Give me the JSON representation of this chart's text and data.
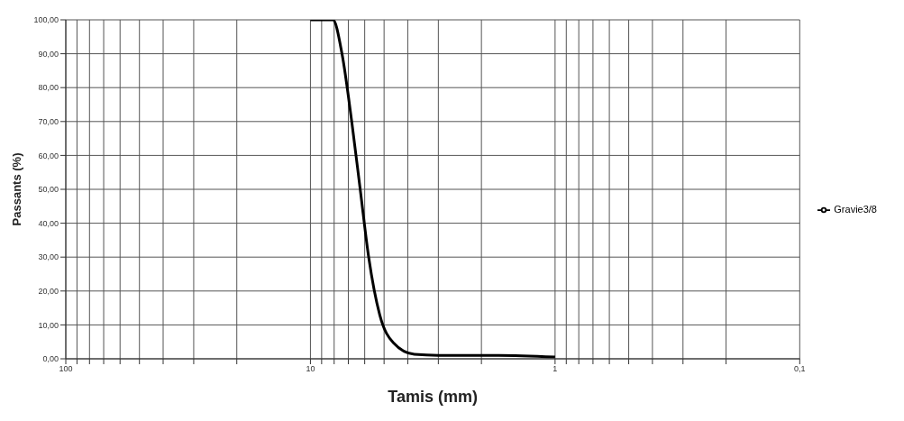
{
  "chart_data": {
    "type": "line",
    "xlabel": "Tamis (mm)",
    "ylabel": "Passants (%)",
    "log": "x",
    "x": [
      10,
      8.93,
      8.09,
      7.43,
      6.78,
      6.26,
      5.78,
      5.21,
      4.58,
      3.76,
      3.0,
      1.7,
      1
    ],
    "series": [
      {
        "name": "Gravie3/8",
        "color": "#000000",
        "values": [
          100,
          100,
          100,
          90,
          70,
          50,
          30,
          13,
          4.7,
          1.3,
          1.0,
          1.0,
          0.5
        ]
      }
    ],
    "xlim": [
      100,
      0.1
    ],
    "xticks": [
      100,
      {
        "value": 90,
        "label": null
      },
      {
        "value": 80,
        "label": null
      },
      {
        "value": 70,
        "label": null
      },
      {
        "value": 60,
        "label": null
      },
      {
        "value": 50,
        "label": null
      },
      {
        "value": 40,
        "label": null
      },
      {
        "value": 30,
        "label": null
      },
      {
        "value": 20,
        "label": null
      },
      10,
      {
        "value": 9,
        "label": null
      },
      {
        "value": 8,
        "label": null
      },
      {
        "value": 7,
        "label": null
      },
      {
        "value": 6,
        "label": null
      },
      {
        "value": 5,
        "label": null
      },
      {
        "value": 4,
        "label": null
      },
      {
        "value": 3,
        "label": null
      },
      {
        "value": 2,
        "label": null
      },
      1,
      {
        "value": 0.9,
        "label": null
      },
      {
        "value": 0.8,
        "label": null
      },
      {
        "value": 0.7,
        "label": null
      },
      {
        "value": 0.6,
        "label": null
      },
      {
        "value": 0.5,
        "label": null
      },
      {
        "value": 0.4,
        "label": null
      },
      {
        "value": 0.3,
        "label": null
      },
      {
        "value": 0.2,
        "label": null
      },
      {
        "value": 0.1,
        "label": "0,1"
      }
    ],
    "ylim": [
      0,
      100
    ],
    "yticks": [
      {
        "value": 0,
        "label": "0,00"
      },
      {
        "value": 10,
        "label": "10,00"
      },
      {
        "value": 20,
        "label": "20,00"
      },
      {
        "value": 30,
        "label": "30,00"
      },
      {
        "value": 40,
        "label": "40,00"
      },
      {
        "value": 50,
        "label": "50,00"
      },
      {
        "value": 60,
        "label": "60,00"
      },
      {
        "value": 70,
        "label": "70,00"
      },
      {
        "value": 80,
        "label": "80,00"
      },
      {
        "value": 90,
        "label": "90,00"
      },
      {
        "value": 100,
        "label": "100,00"
      }
    ],
    "grid": true,
    "legend": "right",
    "marker": "none",
    "line_style": "solid"
  }
}
